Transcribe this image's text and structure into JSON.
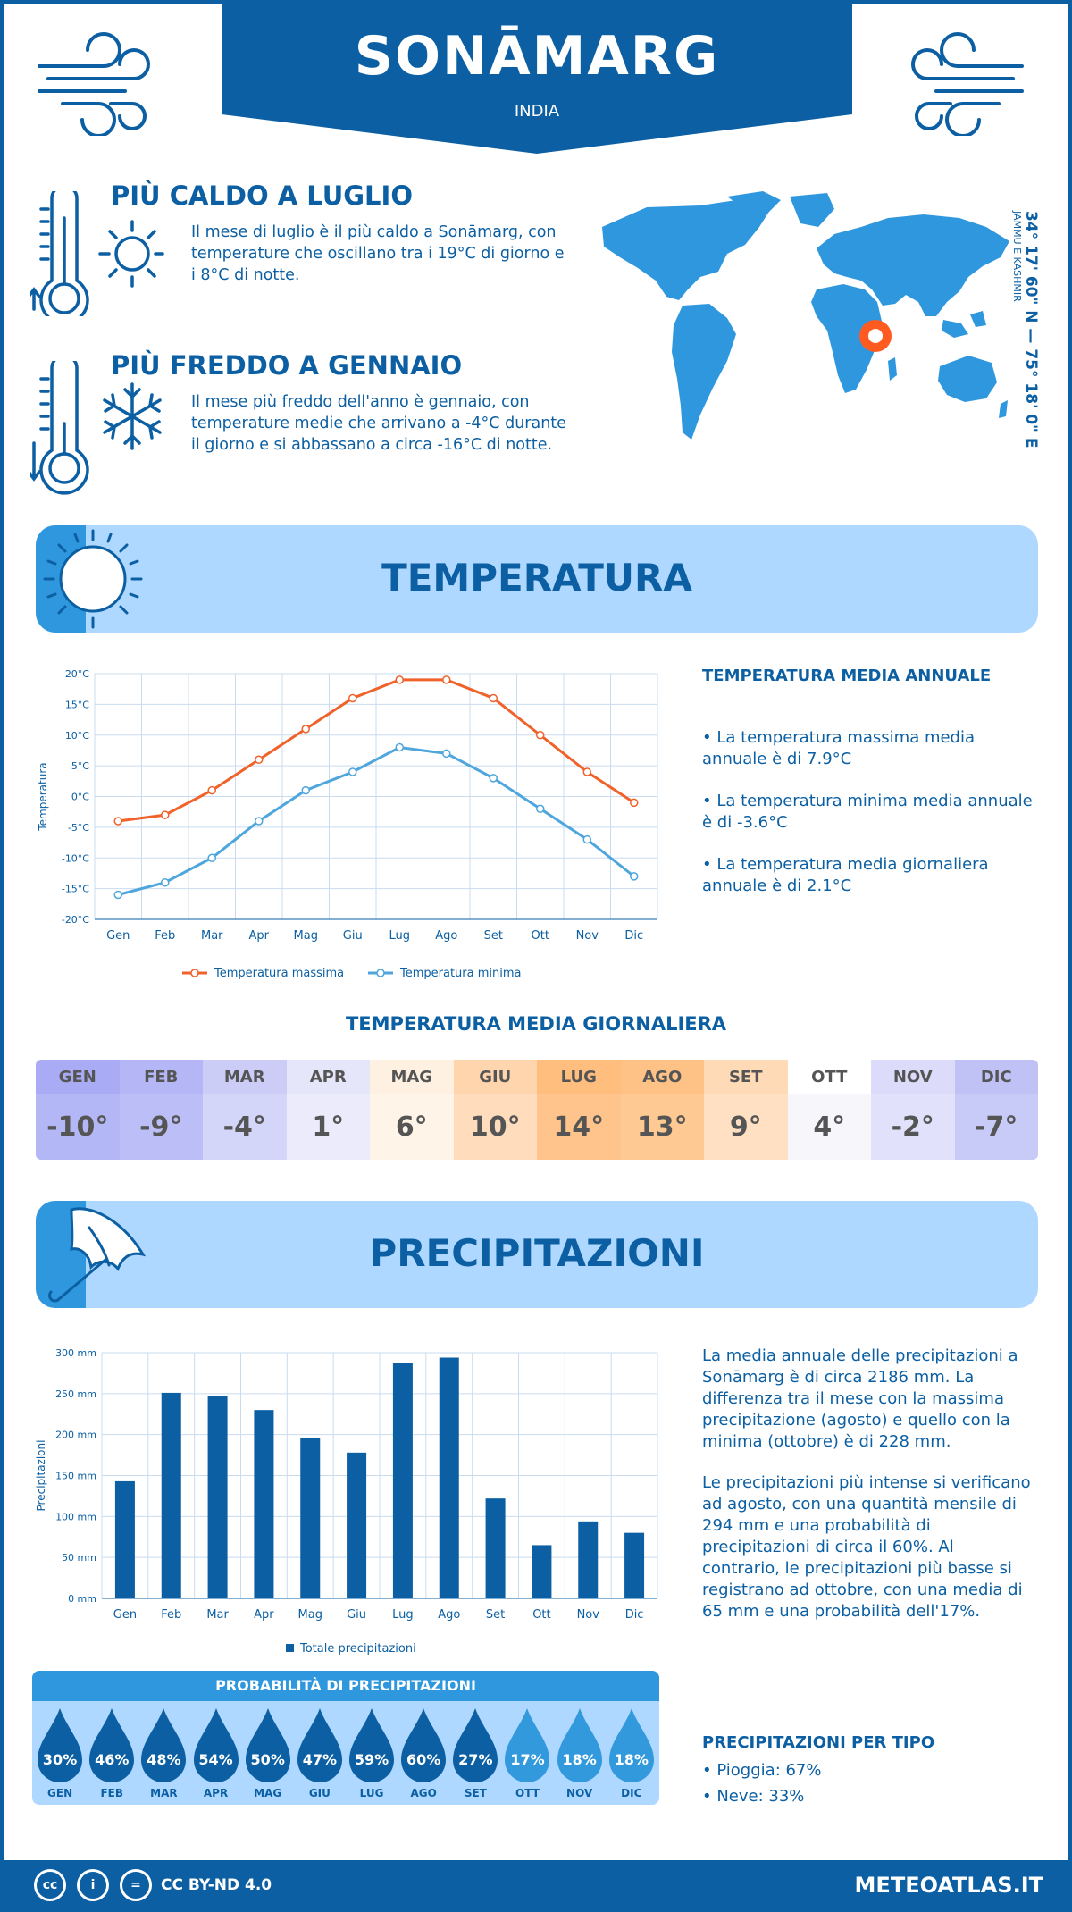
{
  "header": {
    "city": "SONĀMARG",
    "country": "INDIA"
  },
  "hottest": {
    "title": "PIÙ CALDO A LUGLIO",
    "text": "Il mese di luglio è il più caldo a Sonāmarg, con temperature che oscillano tra i 19°C di giorno e i 8°C di notte."
  },
  "coldest": {
    "title": "PIÙ FREDDO A GENNAIO",
    "text": "Il mese più freddo dell'anno è gennaio, con temperature medie che arrivano a -4°C durante il giorno e si abbassano a circa -16°C di notte."
  },
  "location": {
    "coords": "34° 17' 60\" N — 75° 18' 0\" E",
    "region": "JAMMU E KASHMIR"
  },
  "temperature_section": {
    "title": "TEMPERATURA",
    "annual_title": "TEMPERATURA MEDIA ANNUALE",
    "bullets": [
      "• La temperatura massima media annuale è di 7.9°C",
      "• La temperatura minima media annuale è di -3.6°C",
      "• La temperatura media giornaliera annuale è di 2.1°C"
    ]
  },
  "chart_data": [
    {
      "type": "line",
      "categories": [
        "Gen",
        "Feb",
        "Mar",
        "Apr",
        "Mag",
        "Giu",
        "Lug",
        "Ago",
        "Set",
        "Ott",
        "Nov",
        "Dic"
      ],
      "ylabel": "Temperatura",
      "ylim": [
        -20,
        20
      ],
      "yticks": [
        "-20°C",
        "-15°C",
        "-10°C",
        "-5°C",
        "0°C",
        "5°C",
        "10°C",
        "15°C",
        "20°C"
      ],
      "grid": true,
      "legend": "bottom",
      "series": [
        {
          "name": "Temperatura massima",
          "color": "#f0622a",
          "values": [
            -4,
            -3,
            1,
            6,
            11,
            16,
            19,
            19,
            16,
            10,
            4,
            -1
          ]
        },
        {
          "name": "Temperatura minima",
          "color": "#4ea6dc",
          "values": [
            -16,
            -14,
            -10,
            -4,
            1,
            4,
            8,
            7,
            3,
            -2,
            -7,
            -13
          ]
        }
      ]
    },
    {
      "type": "bar",
      "categories": [
        "Gen",
        "Feb",
        "Mar",
        "Apr",
        "Mag",
        "Giu",
        "Lug",
        "Ago",
        "Set",
        "Ott",
        "Nov",
        "Dic"
      ],
      "ylabel": "Precipitazioni",
      "ylim": [
        0,
        300
      ],
      "yticks": [
        "0 mm",
        "50 mm",
        "100 mm",
        "150 mm",
        "200 mm",
        "250 mm",
        "300 mm"
      ],
      "grid": true,
      "legend": "bottom",
      "series": [
        {
          "name": "Totale precipitazioni",
          "color": "#0b5fa2",
          "values": [
            143,
            251,
            247,
            230,
            196,
            178,
            288,
            294,
            122,
            65,
            94,
            80
          ]
        }
      ]
    }
  ],
  "daily": {
    "title": "TEMPERATURA MEDIA GIORNALIERA",
    "months": [
      {
        "name": "GEN",
        "value": "-10°",
        "head": "#a9acf4",
        "body": "#b4b7f6"
      },
      {
        "name": "FEB",
        "value": "-9°",
        "head": "#b4b6f5",
        "body": "#bcbff7"
      },
      {
        "name": "MAR",
        "value": "-4°",
        "head": "#cbcdf7",
        "body": "#d3d5f9"
      },
      {
        "name": "APR",
        "value": "1°",
        "head": "#e6e6fb",
        "body": "#ebebfc"
      },
      {
        "name": "MAG",
        "value": "6°",
        "head": "#fff1e2",
        "body": "#fff4e8"
      },
      {
        "name": "GIU",
        "value": "10°",
        "head": "#ffd5ad",
        "body": "#ffdcbb"
      },
      {
        "name": "LUG",
        "value": "14°",
        "head": "#ffbd7e",
        "body": "#ffc48b"
      },
      {
        "name": "AGO",
        "value": "13°",
        "head": "#ffc286",
        "body": "#ffc993"
      },
      {
        "name": "SET",
        "value": "9°",
        "head": "#ffdab7",
        "body": "#ffe0c3"
      },
      {
        "name": "OTT",
        "value": "4°",
        "head": "#ffffff",
        "body": "#f7f7fb"
      },
      {
        "name": "NOV",
        "value": "-2°",
        "head": "#dcdcfa",
        "body": "#e1e1fb"
      },
      {
        "name": "DIC",
        "value": "-7°",
        "head": "#c0c2f6",
        "body": "#c8caf8"
      }
    ]
  },
  "precipitation_section": {
    "title": "PRECIPITAZIONI",
    "para1": "La media annuale delle precipitazioni a Sonāmarg è di circa 2186 mm. La differenza tra il mese con la massima precipitazione (agosto) e quello con la minima (ottobre) è di 228 mm.",
    "para2": "Le precipitazioni più intense si verificano ad agosto, con una quantità mensile di 294 mm e una probabilità di precipitazioni di circa il 60%. Al contrario, le precipitazioni più basse si registrano ad ottobre, con una media di 65 mm e una probabilità dell'17%.",
    "type_title": "PRECIPITAZIONI PER TIPO",
    "types": [
      "• Pioggia: 67%",
      "• Neve: 33%"
    ]
  },
  "probability": {
    "title": "PROBABILITÀ DI PRECIPITAZIONI",
    "months": [
      {
        "name": "GEN",
        "value": "30%",
        "color": "#0b5fa2"
      },
      {
        "name": "FEB",
        "value": "46%",
        "color": "#0b5fa2"
      },
      {
        "name": "MAR",
        "value": "48%",
        "color": "#0b5fa2"
      },
      {
        "name": "APR",
        "value": "54%",
        "color": "#0b5fa2"
      },
      {
        "name": "MAG",
        "value": "50%",
        "color": "#0b5fa2"
      },
      {
        "name": "GIU",
        "value": "47%",
        "color": "#0b5fa2"
      },
      {
        "name": "LUG",
        "value": "59%",
        "color": "#0b5fa2"
      },
      {
        "name": "AGO",
        "value": "60%",
        "color": "#0b5fa2"
      },
      {
        "name": "SET",
        "value": "27%",
        "color": "#0b5fa2"
      },
      {
        "name": "OTT",
        "value": "17%",
        "color": "#3399dd"
      },
      {
        "name": "NOV",
        "value": "18%",
        "color": "#3399dd"
      },
      {
        "name": "DIC",
        "value": "18%",
        "color": "#3399dd"
      }
    ]
  },
  "footer": {
    "license": "CC BY-ND 4.0",
    "site": "METEOATLAS.IT"
  }
}
